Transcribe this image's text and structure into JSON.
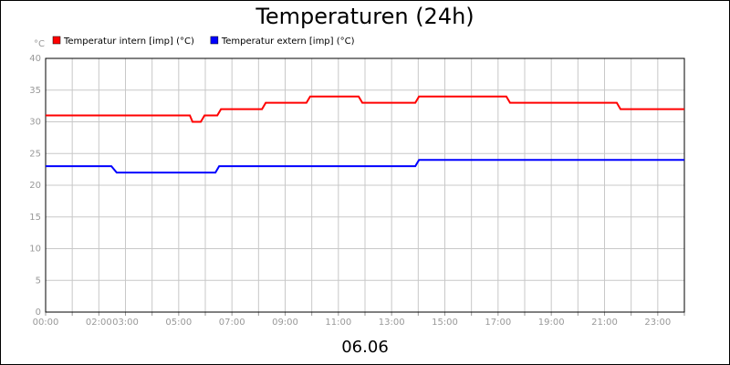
{
  "chart_data": {
    "type": "line",
    "title": "Temperaturen (24h)",
    "y_unit": "°C",
    "x_label": "06.06",
    "series": [
      {
        "name": "Temperatur intern [imp] (°C)",
        "color": "#ff0000",
        "x": [
          0,
          5.42,
          5.52,
          5.83,
          5.97,
          6.45,
          6.59,
          8.13,
          8.27,
          9.8,
          9.94,
          11.76,
          11.9,
          13.89,
          14.03,
          17.31,
          17.45,
          21.46,
          21.6,
          24
        ],
        "values": [
          31,
          31,
          30,
          30,
          31,
          31,
          32,
          32,
          33,
          33,
          34,
          34,
          33,
          33,
          34,
          34,
          33,
          33,
          32,
          32
        ]
      },
      {
        "name": "Temperatur extern [imp] (°C)",
        "color": "#0000ff",
        "x": [
          0,
          2.47,
          2.67,
          6.38,
          6.52,
          13.89,
          14.03,
          24
        ],
        "values": [
          23,
          23,
          22,
          22,
          23,
          23,
          24,
          24
        ]
      }
    ],
    "xlim": [
      0,
      24
    ],
    "xticks": [
      {
        "value": 0,
        "label": "00:00"
      },
      {
        "value": 1,
        "label": null
      },
      {
        "value": 2,
        "label": "02:00"
      },
      {
        "value": 3,
        "label": "03:00"
      },
      {
        "value": 4,
        "label": null
      },
      {
        "value": 5,
        "label": "05:00"
      },
      {
        "value": 6,
        "label": null
      },
      {
        "value": 7,
        "label": "07:00"
      },
      {
        "value": 8,
        "label": null
      },
      {
        "value": 9,
        "label": "09:00"
      },
      {
        "value": 10,
        "label": null
      },
      {
        "value": 11,
        "label": "11:00"
      },
      {
        "value": 12,
        "label": null
      },
      {
        "value": 13,
        "label": "13:00"
      },
      {
        "value": 14,
        "label": null
      },
      {
        "value": 15,
        "label": "15:00"
      },
      {
        "value": 16,
        "label": null
      },
      {
        "value": 17,
        "label": "17:00"
      },
      {
        "value": 18,
        "label": null
      },
      {
        "value": 19,
        "label": "19:00"
      },
      {
        "value": 20,
        "label": null
      },
      {
        "value": 21,
        "label": "21:00"
      },
      {
        "value": 22,
        "label": null
      },
      {
        "value": 23,
        "label": "23:00"
      },
      {
        "value": 24,
        "label": null
      }
    ],
    "ylim": [
      0,
      40
    ],
    "yticks": [
      0,
      5,
      10,
      15,
      20,
      25,
      30,
      35,
      40
    ],
    "grid": true
  }
}
